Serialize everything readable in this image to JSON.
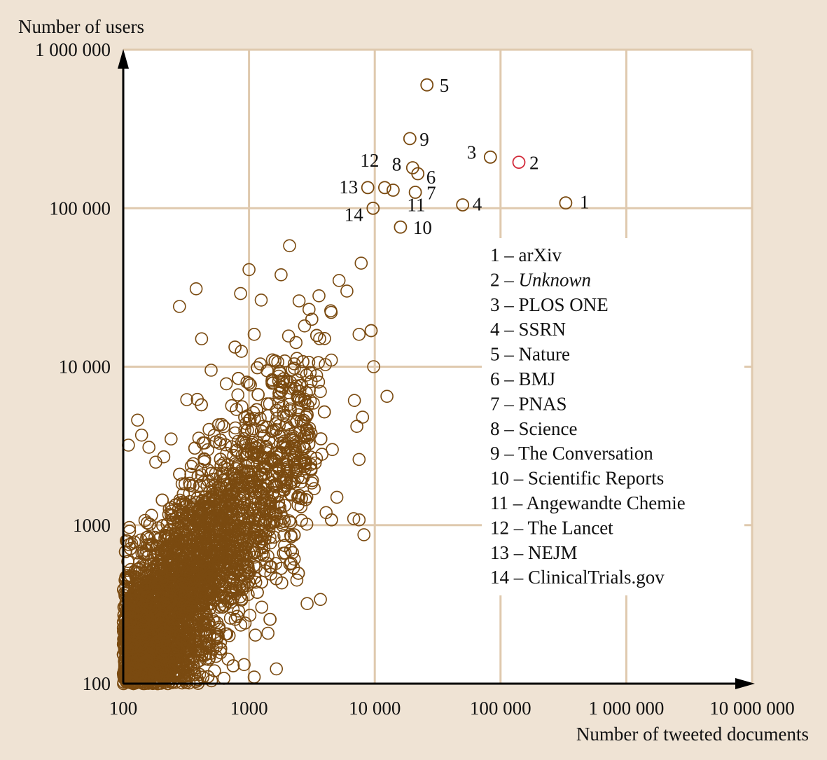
{
  "chart_data": {
    "type": "scatter",
    "title": "",
    "xlabel": "Number of tweeted documents",
    "ylabel": "Number of users",
    "x_scale": "log",
    "y_scale": "log",
    "xlim": [
      100,
      10000000
    ],
    "ylim": [
      100,
      1000000
    ],
    "x_ticks": [
      "100",
      "1000",
      "10 000",
      "100 000",
      "1 000 000",
      "10 000 000"
    ],
    "y_ticks": [
      "100",
      "1000",
      "10 000",
      "100 000",
      "1 000 000"
    ],
    "grid": true,
    "legend_position": "right-middle",
    "colors": {
      "default": "#7a4a10",
      "highlight": "#d22a3a",
      "grid": "#dfc9ae",
      "background": "#efe3d4",
      "plot": "#ffffff"
    },
    "labeled_points": [
      {
        "id": "1",
        "x": 330000,
        "y": 108000
      },
      {
        "id": "2",
        "x": 140000,
        "y": 195000,
        "highlight": true
      },
      {
        "id": "3",
        "x": 83000,
        "y": 210000
      },
      {
        "id": "4",
        "x": 50000,
        "y": 105000
      },
      {
        "id": "5",
        "x": 26000,
        "y": 600000
      },
      {
        "id": "6",
        "x": 22000,
        "y": 165000
      },
      {
        "id": "7",
        "x": 21000,
        "y": 126000
      },
      {
        "id": "8",
        "x": 20000,
        "y": 180000
      },
      {
        "id": "9",
        "x": 19000,
        "y": 275000
      },
      {
        "id": "10",
        "x": 16000,
        "y": 76000
      },
      {
        "id": "11",
        "x": 14000,
        "y": 130000
      },
      {
        "id": "12",
        "x": 12000,
        "y": 135000
      },
      {
        "id": "13",
        "x": 8800,
        "y": 135000
      },
      {
        "id": "14",
        "x": 9700,
        "y": 100000
      }
    ],
    "legend": [
      {
        "num": "1",
        "name": "arXiv",
        "italic": false
      },
      {
        "num": "2",
        "name": "Unknown",
        "italic": true
      },
      {
        "num": "3",
        "name": "PLOS ONE",
        "italic": false
      },
      {
        "num": "4",
        "name": "SSRN",
        "italic": false
      },
      {
        "num": "5",
        "name": " Nature",
        "italic": false
      },
      {
        "num": "6",
        "name": "BMJ",
        "italic": false
      },
      {
        "num": "7",
        "name": "PNAS",
        "italic": false
      },
      {
        "num": "8",
        "name": "Science",
        "italic": false
      },
      {
        "num": "9",
        "name": "The Conversation",
        "italic": false
      },
      {
        "num": "10",
        "name": "Scientific Reports",
        "italic": false
      },
      {
        "num": "11",
        "name": "Angewandte Chemie",
        "italic": false
      },
      {
        "num": "12",
        "name": "The Lancet",
        "italic": false
      },
      {
        "num": "13",
        "name": "NEJM",
        "italic": false
      },
      {
        "num": "14",
        "name": "ClinicalTrials.gov",
        "italic": false
      }
    ],
    "outlier_points": [
      [
        2100,
        58000
      ],
      [
        7800,
        45000
      ],
      [
        1000,
        41000
      ],
      [
        1800,
        38000
      ],
      [
        5200,
        35000
      ],
      [
        380,
        31000
      ],
      [
        6000,
        30000
      ],
      [
        3600,
        28000
      ],
      [
        2500,
        26000
      ],
      [
        3000,
        23000
      ],
      [
        280,
        24000
      ],
      [
        4500,
        22000
      ],
      [
        1100,
        16000
      ],
      [
        7500,
        16000
      ],
      [
        420,
        15000
      ],
      [
        9800,
        10000
      ],
      [
        12500,
        6500
      ],
      [
        8000,
        4800
      ],
      [
        7200,
        4200
      ],
      [
        4600,
        3000
      ],
      [
        3800,
        2800
      ],
      [
        7500,
        2600
      ],
      [
        2700,
        2000
      ],
      [
        3300,
        1700
      ],
      [
        6800,
        1100
      ],
      [
        7500,
        1080
      ],
      [
        8200,
        870
      ],
      [
        5000,
        1500
      ],
      [
        4100,
        1200
      ],
      [
        3700,
        340
      ],
      [
        2900,
        320
      ],
      [
        2400,
        450
      ],
      [
        1650,
        124
      ],
      [
        1100,
        110
      ],
      [
        350,
        160
      ],
      [
        130,
        4600
      ],
      [
        110,
        3200
      ],
      [
        140,
        3700
      ],
      [
        160,
        3100
      ],
      [
        240,
        3500
      ],
      [
        210,
        2700
      ],
      [
        320,
        6200
      ],
      [
        500,
        9500
      ],
      [
        870,
        12500
      ],
      [
        660,
        7800
      ]
    ],
    "cluster": {
      "count": 4200,
      "x_range": [
        100,
        10000
      ],
      "y_range": [
        100,
        30000
      ],
      "seed": 12345
    }
  }
}
